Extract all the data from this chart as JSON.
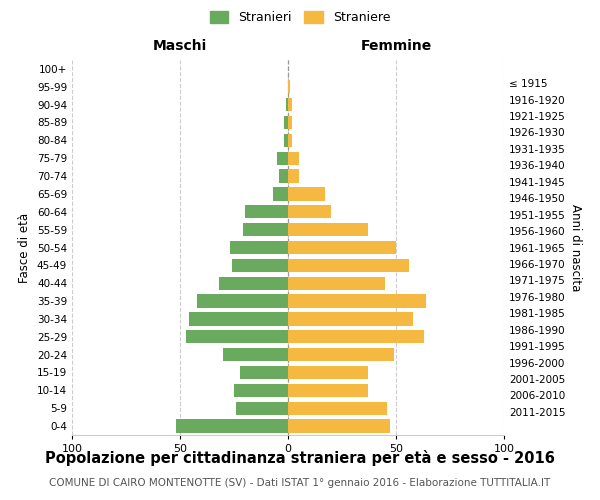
{
  "age_groups": [
    "0-4",
    "5-9",
    "10-14",
    "15-19",
    "20-24",
    "25-29",
    "30-34",
    "35-39",
    "40-44",
    "45-49",
    "50-54",
    "55-59",
    "60-64",
    "65-69",
    "70-74",
    "75-79",
    "80-84",
    "85-89",
    "90-94",
    "95-99",
    "100+"
  ],
  "birth_years": [
    "2011-2015",
    "2006-2010",
    "2001-2005",
    "1996-2000",
    "1991-1995",
    "1986-1990",
    "1981-1985",
    "1976-1980",
    "1971-1975",
    "1966-1970",
    "1961-1965",
    "1956-1960",
    "1951-1955",
    "1946-1950",
    "1941-1945",
    "1936-1940",
    "1931-1935",
    "1926-1930",
    "1921-1925",
    "1916-1920",
    "≤ 1915"
  ],
  "males": [
    52,
    24,
    25,
    22,
    30,
    47,
    46,
    42,
    32,
    26,
    27,
    21,
    20,
    7,
    4,
    5,
    2,
    2,
    1,
    0,
    0
  ],
  "females": [
    47,
    46,
    37,
    37,
    49,
    63,
    58,
    64,
    45,
    56,
    50,
    37,
    20,
    17,
    5,
    5,
    2,
    2,
    2,
    1,
    0
  ],
  "male_color": "#6aaa5e",
  "female_color": "#f5b942",
  "bar_height": 0.75,
  "xlim": 100,
  "title": "Popolazione per cittadinanza straniera per età e sesso - 2016",
  "subtitle": "COMUNE DI CAIRO MONTENOTTE (SV) - Dati ISTAT 1° gennaio 2016 - Elaborazione TUTTITALIA.IT",
  "ylabel_left": "Fasce di età",
  "ylabel_right": "Anni di nascita",
  "xlabel_left": "Maschi",
  "xlabel_right": "Femmine",
  "legend_male": "Stranieri",
  "legend_female": "Straniere",
  "bg_color": "#ffffff",
  "grid_color": "#cccccc",
  "title_fontsize": 10.5,
  "subtitle_fontsize": 7.5,
  "axis_label_fontsize": 9
}
